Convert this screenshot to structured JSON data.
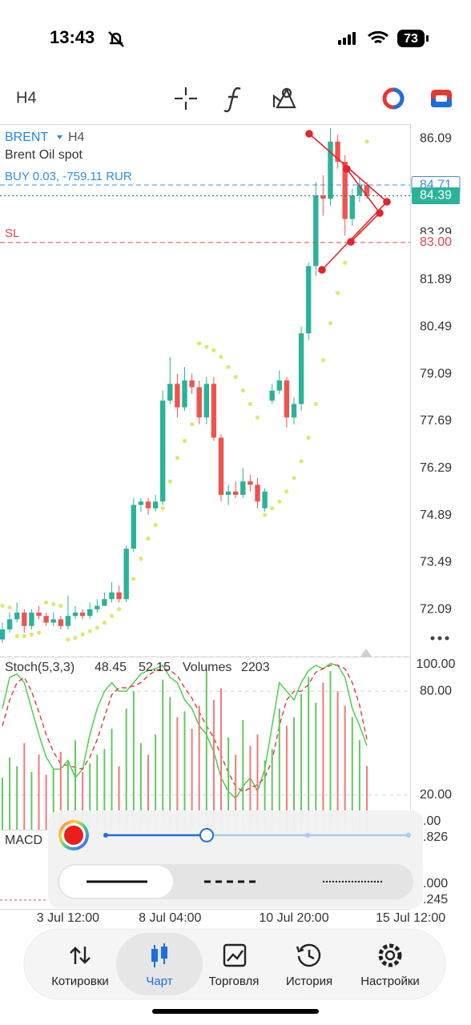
{
  "status_bar": {
    "time": "13:43",
    "battery": "73"
  },
  "toolbar": {
    "timeframe": "H4"
  },
  "chart_data": [
    {
      "type": "candlestick",
      "symbol": "BRENT",
      "timeframe": "H4",
      "title": "Brent Oil spot",
      "position": "BUY 0.03, -759.11 RUR",
      "sl_label": "SL",
      "categories": [
        null,
        null,
        null,
        null,
        null,
        null,
        null,
        null,
        null,
        "3 Jul 12:00",
        null,
        null,
        null,
        null,
        null,
        null,
        null,
        null,
        null,
        null,
        null,
        null,
        null,
        "8 Jul 04:00",
        null,
        null,
        null,
        null,
        null,
        null,
        null,
        null,
        null,
        null,
        null,
        null,
        null,
        null,
        null,
        null,
        "10 Jul 20:00",
        null,
        null,
        null,
        null,
        null,
        null,
        null,
        null,
        null,
        null,
        null,
        null,
        null,
        null,
        null,
        "15 Jul 12:00"
      ],
      "open": [
        71.2,
        71.5,
        71.8,
        72.0,
        71.6,
        72.0,
        71.9,
        71.7,
        71.8,
        71.6,
        71.9,
        72.0,
        71.9,
        72.1,
        72.2,
        72.4,
        72.6,
        72.4,
        73.9,
        75.2,
        75.3,
        75.1,
        75.3,
        78.3,
        78.8,
        78.1,
        78.9,
        78.7,
        77.8,
        78.8,
        77.2,
        75.5,
        75.6,
        75.5,
        75.9,
        75.8,
        75.1,
        78.3,
        78.6,
        78.9,
        77.8,
        78.2,
        80.3,
        82.3,
        84.4,
        84.3,
        86.0,
        85.4,
        83.7,
        84.4,
        84.7,
        null,
        null,
        null,
        null,
        null,
        null
      ],
      "high": [
        71.7,
        72.0,
        72.3,
        72.1,
        72.1,
        72.2,
        72.0,
        72.0,
        71.9,
        72.5,
        72.2,
        72.1,
        72.3,
        72.4,
        72.6,
        72.9,
        72.8,
        74.0,
        75.4,
        75.4,
        75.4,
        75.5,
        78.6,
        79.6,
        79.1,
        79.3,
        79.1,
        78.9,
        79.0,
        79.0,
        77.3,
        75.8,
        75.9,
        76.3,
        76.1,
        76.0,
        75.7,
        78.8,
        79.2,
        79.0,
        78.4,
        80.5,
        82.4,
        84.8,
        85.0,
        86.4,
        86.2,
        85.6,
        84.6,
        84.9,
        84.8,
        null,
        null,
        null,
        null,
        null,
        null
      ],
      "low": [
        71.1,
        71.4,
        71.7,
        71.4,
        71.5,
        71.8,
        71.6,
        71.6,
        71.5,
        71.5,
        71.8,
        71.8,
        71.8,
        72.0,
        72.2,
        72.3,
        72.3,
        72.3,
        73.8,
        75.0,
        74.9,
        75.0,
        75.2,
        78.2,
        77.8,
        78.0,
        78.5,
        77.6,
        77.6,
        77.1,
        75.3,
        75.2,
        75.4,
        75.4,
        75.6,
        75.1,
        75.0,
        78.2,
        78.5,
        77.5,
        77.6,
        78.0,
        80.1,
        82.0,
        83.8,
        84.1,
        85.2,
        83.2,
        83.5,
        84.2,
        84.3,
        null,
        null,
        null,
        null,
        null,
        null
      ],
      "close": [
        71.5,
        71.8,
        72.0,
        71.6,
        72.0,
        71.9,
        71.7,
        71.8,
        71.6,
        71.9,
        72.0,
        71.9,
        72.1,
        72.2,
        72.4,
        72.6,
        72.4,
        73.9,
        75.2,
        75.3,
        75.1,
        75.3,
        78.3,
        78.8,
        78.1,
        78.9,
        78.7,
        77.8,
        78.8,
        77.2,
        75.5,
        75.6,
        75.5,
        75.9,
        75.8,
        75.3,
        75.6,
        78.6,
        78.9,
        77.8,
        78.2,
        80.3,
        82.3,
        84.4,
        84.3,
        86.0,
        85.4,
        83.7,
        84.4,
        84.7,
        84.39,
        null,
        null,
        null,
        null,
        null,
        null
      ],
      "up_color": "#2bb39a",
      "down_color": "#ef5350",
      "sar": {
        "color": "#dde86c",
        "values": [
          72.2,
          72.15,
          71.3,
          71.3,
          71.35,
          71.4,
          72.3,
          72.25,
          72.2,
          71.2,
          71.25,
          71.35,
          71.45,
          71.55,
          71.7,
          71.9,
          72.1,
          72.5,
          73.0,
          73.6,
          74.2,
          74.6,
          75.1,
          75.9,
          76.6,
          77.1,
          77.6,
          80.0,
          79.9,
          79.8,
          79.6,
          79.3,
          79.0,
          78.6,
          78.2,
          77.8,
          74.9,
          75.1,
          75.3,
          75.6,
          76.0,
          76.5,
          77.2,
          78.2,
          79.5,
          80.6,
          81.5,
          82.4,
          83.1,
          83.3,
          86.0,
          null,
          null,
          null,
          null,
          null,
          null
        ]
      },
      "ylim": [
        70.69,
        86.52
      ],
      "yticks": [
        86.09,
        83.29,
        81.89,
        80.49,
        79.09,
        77.69,
        76.29,
        74.89,
        73.49,
        72.09
      ],
      "grid": false,
      "price_lines": [
        {
          "value": 84.71,
          "color": "#3b8fd9",
          "style": "dashed"
        },
        {
          "value": 84.39,
          "color": "#1f6f6a",
          "style": "dotted",
          "label_bg": "#2bb39a"
        },
        {
          "value": 83,
          "label": "83.00",
          "color": "#e0474c",
          "style": "dashed"
        }
      ]
    },
    {
      "type": "line",
      "title": "Stoch(5,3,3)",
      "series": [
        {
          "color": "#3fcf3f",
          "style": "solid",
          "values": [
            70,
            88,
            90,
            85,
            70,
            55,
            42,
            35,
            35,
            40,
            30,
            35,
            55,
            70,
            80,
            85,
            80,
            80,
            85,
            90,
            92,
            93,
            95,
            88,
            85,
            75,
            70,
            60,
            55,
            45,
            30,
            22,
            18,
            25,
            30,
            22,
            35,
            60,
            85,
            80,
            75,
            85,
            92,
            95,
            93,
            96,
            95,
            88,
            70,
            60,
            48.45,
            null,
            null,
            null,
            null,
            null,
            null
          ]
        },
        {
          "color": "#e0393e",
          "style": "dashed",
          "values": [
            60,
            75,
            85,
            88,
            80,
            68,
            55,
            45,
            38,
            37,
            36,
            35,
            42,
            52,
            65,
            78,
            82,
            82,
            83,
            85,
            89,
            92,
            93,
            92,
            89,
            82,
            76,
            68,
            60,
            53,
            43,
            33,
            25,
            22,
            24,
            26,
            30,
            40,
            60,
            75,
            80,
            80,
            84,
            91,
            93,
            95,
            95,
            93,
            85,
            72,
            52.15,
            null,
            null,
            null,
            null,
            null,
            null
          ]
        },
        {
          "name": "Volumes",
          "type": "bar",
          "axis": "y2",
          "values": [
            1800,
            2500,
            2200,
            3000,
            2000,
            2600,
            1900,
            2100,
            2700,
            2400,
            3100,
            2000,
            2300,
            2600,
            2800,
            3500,
            2200,
            4200,
            4800,
            3000,
            2600,
            3300,
            5200,
            4600,
            3900,
            4100,
            3500,
            4300,
            5600,
            4500,
            4900,
            3200,
            2600,
            3800,
            2900,
            3300,
            2400,
            2800,
            4200,
            3600,
            3900,
            4700,
            5300,
            4400,
            5100,
            5500,
            4800,
            4300,
            3900,
            3100,
            2203,
            null,
            null,
            null,
            null,
            null,
            null
          ]
        }
      ],
      "ylim": [
        0,
        100
      ],
      "yticks": [
        {
          "value": 100,
          "label": "100.00"
        },
        {
          "value": 80,
          "label": "80.00"
        },
        {
          "value": 20,
          "label": "20.00"
        }
      ],
      "y2lim": [
        0,
        6000
      ],
      "grid": true
    }
  ],
  "macd": {
    "title": "MACD",
    "scale_labels": [
      ".00",
      ".826",
      ".000",
      ".245"
    ]
  },
  "line_style_panel": {
    "styles": [
      "solid",
      "dashed",
      "dotted"
    ],
    "selected": "solid"
  },
  "bottom_nav": {
    "tabs": [
      "Котировки",
      "Чарт",
      "Торговля",
      "История",
      "Настройки"
    ],
    "selected": "Чарт"
  }
}
